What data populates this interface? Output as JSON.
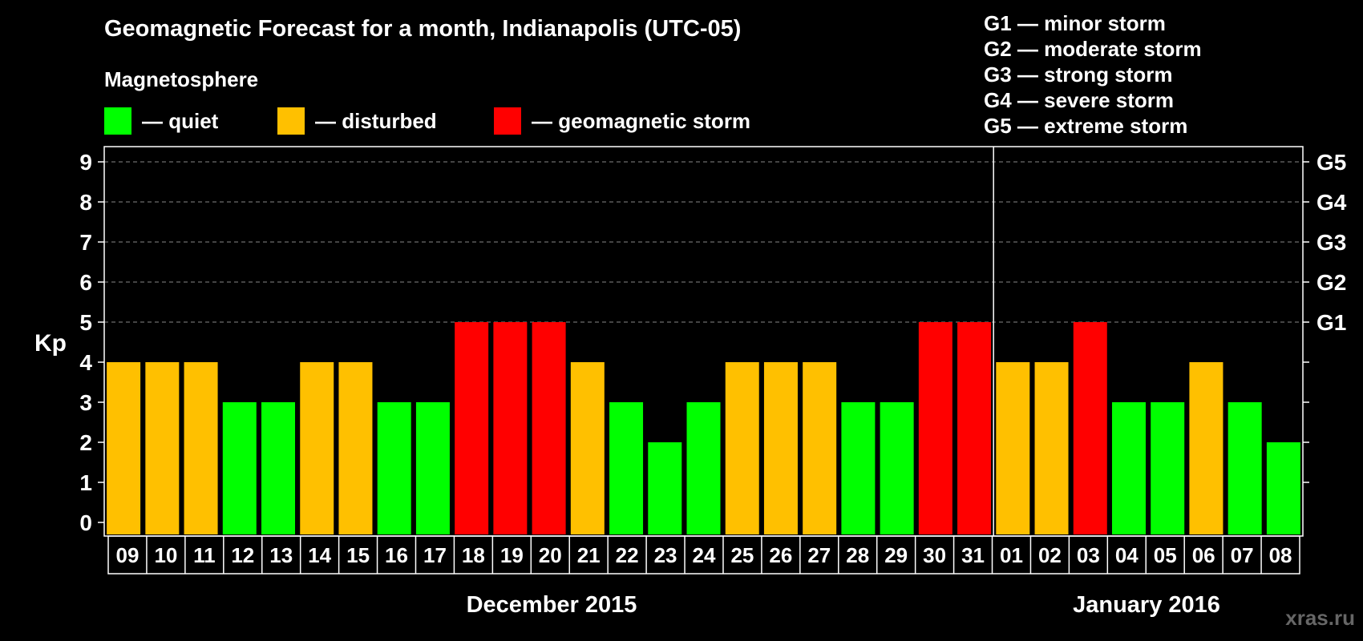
{
  "title": "Geomagnetic Forecast for a month, Indianapolis (UTC-05)",
  "legend": {
    "title": "Magnetosphere",
    "items": [
      {
        "label": "— quiet",
        "color": "#00ff00"
      },
      {
        "label": "— disturbed",
        "color": "#ffc000"
      },
      {
        "label": "— geomagnetic storm",
        "color": "#ff0000"
      }
    ]
  },
  "storm_levels": [
    "G1 — minor storm",
    "G2 — moderate storm",
    "G3 — strong storm",
    "G4 — severe storm",
    "G5 — extreme storm"
  ],
  "watermark": "xras.ru",
  "chart_data": {
    "type": "bar",
    "ylabel": "Kp",
    "ylim": [
      0,
      9
    ],
    "yticks": [
      "0",
      "1",
      "2",
      "3",
      "4",
      "5",
      "6",
      "7",
      "8",
      "9"
    ],
    "right_axis_labels": [
      {
        "value": 5,
        "label": "G1"
      },
      {
        "value": 6,
        "label": "G2"
      },
      {
        "value": 7,
        "label": "G3"
      },
      {
        "value": 8,
        "label": "G4"
      },
      {
        "value": 9,
        "label": "G5"
      }
    ],
    "grid": "dashed horizontal at 5-9",
    "categories": [
      "09",
      "10",
      "11",
      "12",
      "13",
      "14",
      "15",
      "16",
      "17",
      "18",
      "19",
      "20",
      "21",
      "22",
      "23",
      "24",
      "25",
      "26",
      "27",
      "28",
      "29",
      "30",
      "31",
      "01",
      "02",
      "03",
      "04",
      "05",
      "06",
      "07",
      "08"
    ],
    "values": [
      4,
      4,
      4,
      3,
      3,
      4,
      4,
      3,
      3,
      5,
      5,
      5,
      4,
      3,
      2,
      3,
      4,
      4,
      4,
      3,
      3,
      5,
      5,
      4,
      4,
      5,
      3,
      3,
      4,
      3,
      2
    ],
    "months": [
      {
        "label": "December 2015",
        "start": 0,
        "end": 22
      },
      {
        "label": "January 2016",
        "start": 23,
        "end": 30
      }
    ],
    "colors": {
      "quiet": "#00ff00",
      "disturbed": "#ffc000",
      "storm": "#ff0000"
    }
  }
}
